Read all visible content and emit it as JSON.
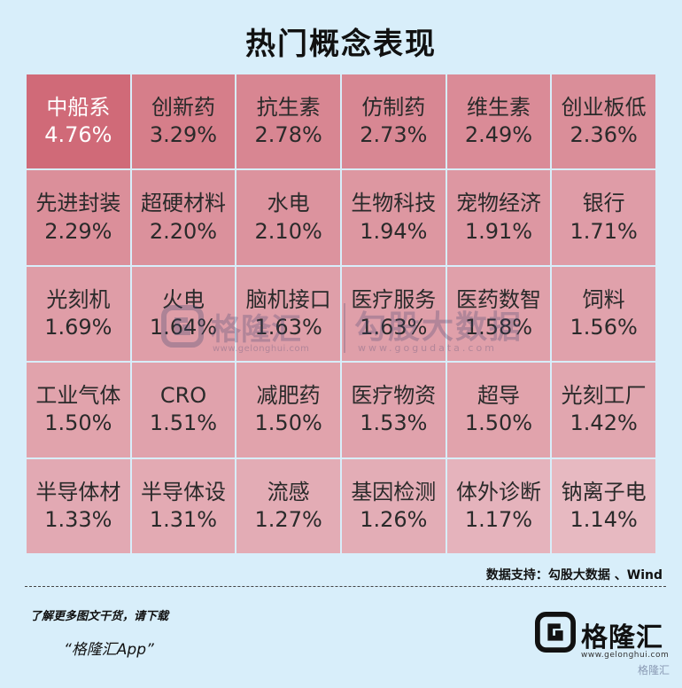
{
  "title": "热门概念表现",
  "chart_data": {
    "type": "table",
    "title": "热门概念表现",
    "columns": 6,
    "cells": [
      {
        "name": "中船系",
        "value": "4.76%",
        "pct": 4.76
      },
      {
        "name": "创新药",
        "value": "3.29%",
        "pct": 3.29
      },
      {
        "name": "抗生素",
        "value": "2.78%",
        "pct": 2.78
      },
      {
        "name": "仿制药",
        "value": "2.73%",
        "pct": 2.73
      },
      {
        "name": "维生素",
        "value": "2.49%",
        "pct": 2.49
      },
      {
        "name": "创业板低",
        "value": "2.36%",
        "pct": 2.36
      },
      {
        "name": "先进封装",
        "value": "2.29%",
        "pct": 2.29
      },
      {
        "name": "超硬材料",
        "value": "2.20%",
        "pct": 2.2
      },
      {
        "name": "水电",
        "value": "2.10%",
        "pct": 2.1
      },
      {
        "name": "生物科技",
        "value": "1.94%",
        "pct": 1.94
      },
      {
        "name": "宠物经济",
        "value": "1.91%",
        "pct": 1.91
      },
      {
        "name": "银行",
        "value": "1.71%",
        "pct": 1.71
      },
      {
        "name": "光刻机",
        "value": "1.69%",
        "pct": 1.69
      },
      {
        "name": "火电",
        "value": "1.64%",
        "pct": 1.64
      },
      {
        "name": "脑机接口",
        "value": "1.63%",
        "pct": 1.63
      },
      {
        "name": "医疗服务",
        "value": "1.63%",
        "pct": 1.63
      },
      {
        "name": "医药数智",
        "value": "1.58%",
        "pct": 1.58
      },
      {
        "name": "饲料",
        "value": "1.56%",
        "pct": 1.56
      },
      {
        "name": "工业气体",
        "value": "1.50%",
        "pct": 1.5
      },
      {
        "name": "CRO",
        "value": "1.51%",
        "pct": 1.51
      },
      {
        "name": "减肥药",
        "value": "1.50%",
        "pct": 1.5
      },
      {
        "name": "医疗物资",
        "value": "1.53%",
        "pct": 1.53
      },
      {
        "name": "超导",
        "value": "1.50%",
        "pct": 1.5
      },
      {
        "name": "光刻工厂",
        "value": "1.42%",
        "pct": 1.42
      },
      {
        "name": "半导体材",
        "value": "1.33%",
        "pct": 1.33
      },
      {
        "name": "半导体设",
        "value": "1.31%",
        "pct": 1.31
      },
      {
        "name": "流感",
        "value": "1.27%",
        "pct": 1.27
      },
      {
        "name": "基因检测",
        "value": "1.26%",
        "pct": 1.26
      },
      {
        "name": "体外诊断",
        "value": "1.17%",
        "pct": 1.17
      },
      {
        "name": "钠离子电",
        "value": "1.14%",
        "pct": 1.14
      }
    ],
    "color_high": "#d06a78",
    "color_low": "#e7b9c1"
  },
  "source": "数据支持：勾股大数据 、Wind",
  "promo": {
    "line1": "了解更多图文干货，请下载",
    "line2": "“格隆汇App”"
  },
  "logo": {
    "name": "格隆汇",
    "url": "www.gelonghui.com",
    "icon": "gelonghui-logo-icon"
  },
  "watermarks": {
    "brand": "格隆汇",
    "brand_url": "www.gelonghui.com",
    "data_brand": "勾股大数据",
    "data_url": "www.gogudata.com",
    "corner": "格隆汇"
  }
}
